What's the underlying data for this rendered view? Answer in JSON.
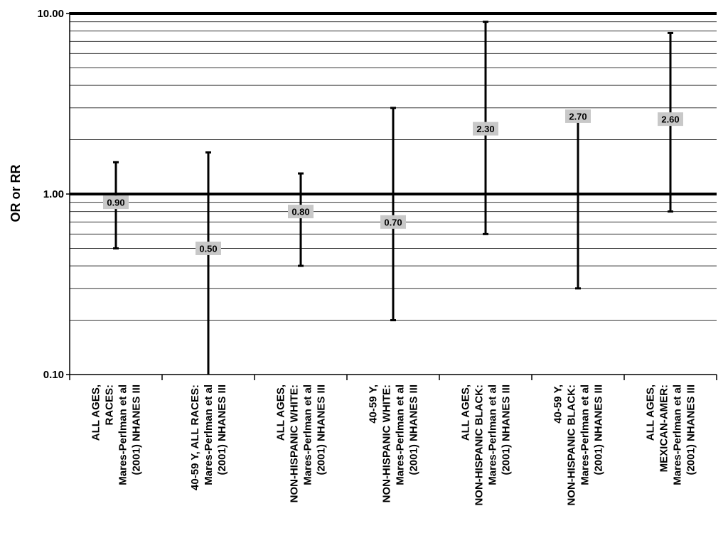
{
  "chart_data": {
    "type": "scatter",
    "subtype": "error-bar",
    "y_scale": "log",
    "ylim": [
      0.1,
      10
    ],
    "ylabel": "OR or RR",
    "ytick_labels": [
      "10.00",
      "1.00",
      "0.10"
    ],
    "yticks": [
      10,
      1,
      0.1
    ],
    "reference_line": 1,
    "grid": true,
    "categories": [
      [
        "ALL AGES,",
        "RACES:",
        "Mares-Perlman et al",
        "(2001) NHANES III"
      ],
      [
        "40-59 Y, ALL RACES:",
        "Mares-Perlman et al",
        "(2001) NHANES III"
      ],
      [
        "ALL AGES,",
        "NON-HISPANIC WHITE:",
        "Mares-Perlman et al",
        "(2001) NHANES III"
      ],
      [
        "40-59 Y,",
        "NON-HISPANIC WHITE:",
        "Mares-Perlman et al",
        "(2001) NHANES III"
      ],
      [
        "ALL AGES,",
        "NON-HISPANIC BLACK:",
        "Mares-Perlman et al",
        "(2001) NHANES III"
      ],
      [
        "40-59 Y,",
        "NON-HISPANIC BLACK:",
        "Mares-Perlman et al",
        "(2001) NHANES III"
      ],
      [
        "ALL AGES,",
        "MEXICAN-AMER:",
        "Mares-Perlman et al",
        "(2001) NHANES III"
      ]
    ],
    "values": [
      0.9,
      0.5,
      0.8,
      0.7,
      2.3,
      2.7,
      2.6
    ],
    "value_labels": [
      "0.90",
      "0.50",
      "0.80",
      "0.70",
      "2.30",
      "2.70",
      "2.60"
    ],
    "lower": [
      0.5,
      0.1,
      0.4,
      0.2,
      0.6,
      0.3,
      0.8
    ],
    "upper": [
      1.5,
      1.7,
      1.3,
      3.0,
      9.0,
      2.7,
      7.8
    ]
  },
  "colors": {
    "line": "#000000",
    "grid": "#333333",
    "label_box": "#c8c8c8"
  }
}
